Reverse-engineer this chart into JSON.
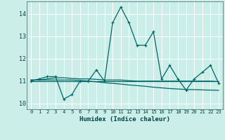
{
  "xlabel": "Humidex (Indice chaleur)",
  "background_color": "#cceee8",
  "grid_color": "#ffffff",
  "line_color": "#006666",
  "xlim": [
    -0.5,
    23.5
  ],
  "ylim": [
    9.75,
    14.55
  ],
  "yticks": [
    10,
    11,
    12,
    13,
    14
  ],
  "xticks": [
    0,
    1,
    2,
    3,
    4,
    5,
    6,
    7,
    8,
    9,
    10,
    11,
    12,
    13,
    14,
    15,
    16,
    17,
    18,
    19,
    20,
    21,
    22,
    23
  ],
  "series1_y": [
    11.0,
    11.1,
    11.2,
    11.2,
    10.2,
    10.4,
    11.0,
    11.0,
    11.5,
    11.0,
    13.6,
    14.3,
    13.6,
    12.6,
    12.6,
    13.2,
    11.1,
    11.7,
    11.1,
    10.6,
    11.1,
    11.4,
    11.7,
    10.9
  ],
  "series2_y": [
    11.05,
    11.05,
    11.1,
    11.15,
    11.15,
    11.12,
    11.1,
    11.1,
    11.08,
    11.05,
    11.05,
    11.05,
    11.02,
    11.0,
    11.0,
    11.0,
    11.0,
    11.0,
    11.0,
    11.0,
    11.0,
    11.0,
    11.0,
    10.98
  ],
  "series3_y": [
    11.05,
    11.05,
    11.05,
    11.05,
    11.05,
    11.05,
    11.03,
    11.0,
    10.97,
    10.93,
    10.9,
    10.87,
    10.83,
    10.8,
    10.77,
    10.73,
    10.7,
    10.67,
    10.65,
    10.63,
    10.62,
    10.61,
    10.6,
    10.59
  ],
  "series4_y": [
    11.0,
    11.0,
    11.0,
    11.0,
    11.0,
    11.0,
    11.0,
    11.0,
    11.0,
    11.0,
    11.0,
    11.0,
    11.0,
    11.0,
    11.0,
    11.0,
    11.0,
    11.0,
    11.0,
    11.0,
    11.0,
    11.0,
    11.0,
    11.0
  ]
}
